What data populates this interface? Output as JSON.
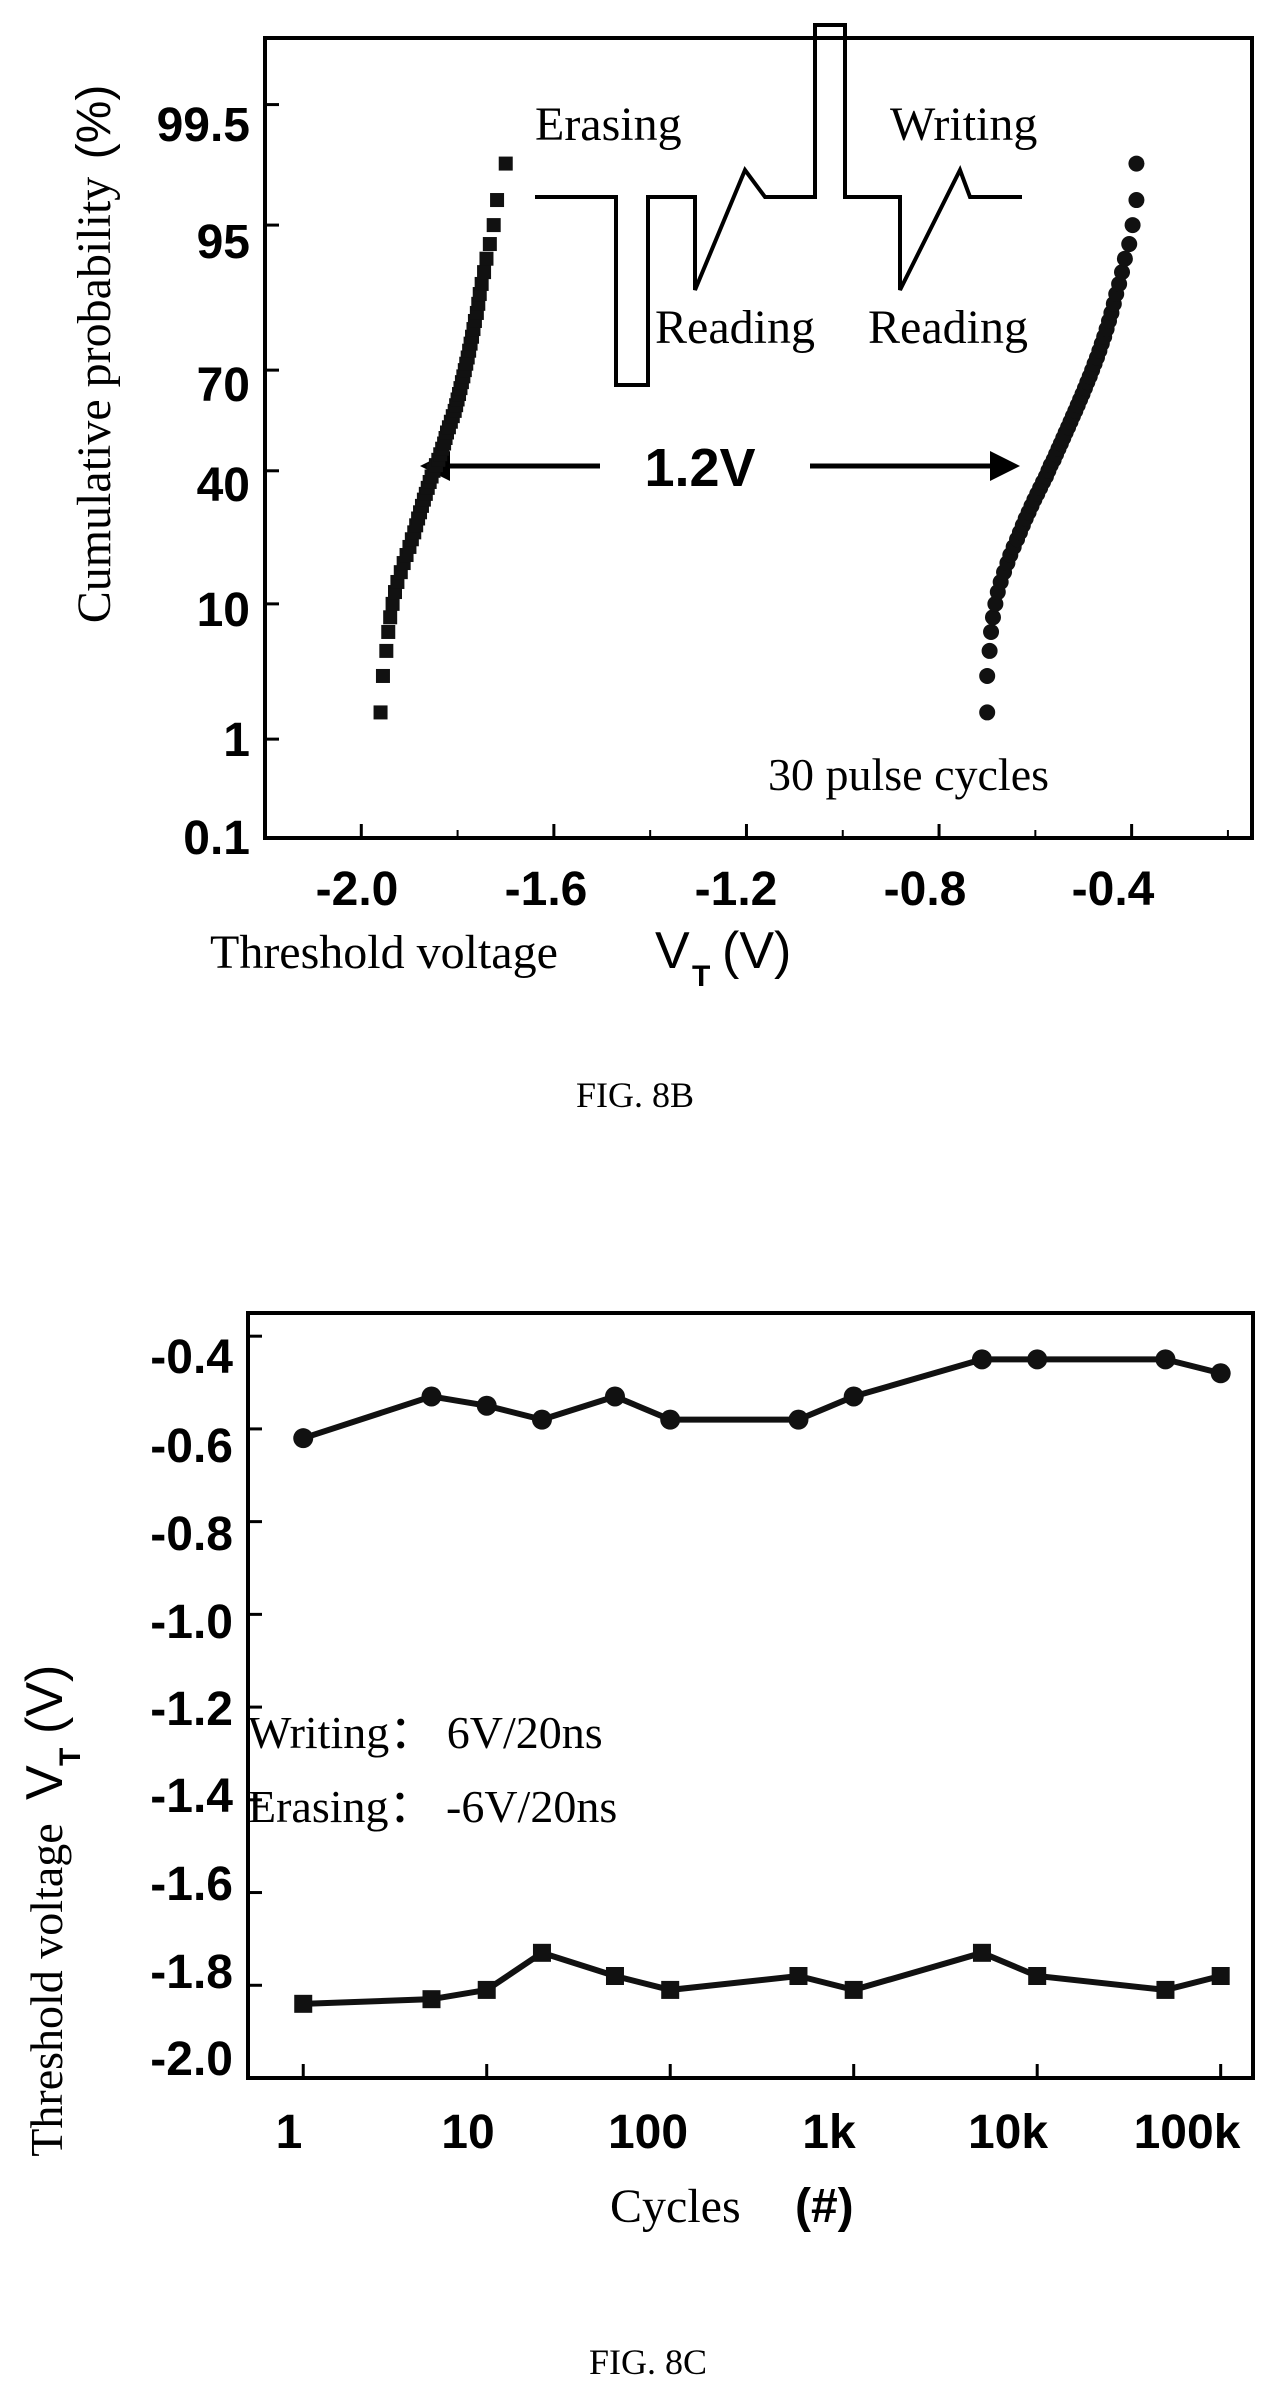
{
  "charts": [
    {
      "caption": "FIG. 8B",
      "title": "",
      "xlabel": "Threshold voltage",
      "xlabel_symbol": "V",
      "xlabel_subscript": "T",
      "xlabel_unit": "(V)",
      "ylabel": "Cumulative probability",
      "ylabel_unit": "(%)",
      "annotations": {
        "erasing": "Erasing",
        "writing": "Writing",
        "reading_left": "Reading",
        "reading_right": "Reading",
        "window": "1.2V",
        "cycles": "30 pulse cycles"
      }
    },
    {
      "caption": "FIG. 8C",
      "title": "",
      "xlabel": "Cycles",
      "xlabel_unit": "(#)",
      "ylabel": "Threshold voltage",
      "ylabel_symbol": "V",
      "ylabel_subscript": "T",
      "ylabel_unit": "(V)",
      "annotations": {
        "writing": "Writing： 6V/20ns",
        "erasing": "Erasing： -6V/20ns"
      }
    }
  ],
  "chart_data": [
    {
      "type": "scatter",
      "y_scale": "probability",
      "x_ticks": [
        "-2.0",
        "-1.6",
        "-1.2",
        "-0.8",
        "-0.4"
      ],
      "y_ticks": [
        "0.1",
        "1",
        "10",
        "40",
        "70",
        "95",
        "99.5"
      ],
      "xlim": [
        -2.2,
        -0.15
      ],
      "ylim_percent": [
        0.1,
        99.9
      ],
      "series": [
        {
          "marker": "square",
          "points": [
            [
              -1.96,
              1.7
            ],
            [
              -1.955,
              3.3
            ],
            [
              -1.948,
              5.0
            ],
            [
              -1.944,
              6.7
            ],
            [
              -1.94,
              8.3
            ],
            [
              -1.935,
              10.0
            ],
            [
              -1.93,
              11.7
            ],
            [
              -1.925,
              13.3
            ],
            [
              -1.918,
              15.0
            ],
            [
              -1.912,
              16.7
            ],
            [
              -1.906,
              18.3
            ],
            [
              -1.9,
              20.0
            ],
            [
              -1.895,
              21.7
            ],
            [
              -1.89,
              23.3
            ],
            [
              -1.886,
              25.0
            ],
            [
              -1.882,
              26.7
            ],
            [
              -1.878,
              28.3
            ],
            [
              -1.874,
              30.0
            ],
            [
              -1.87,
              31.7
            ],
            [
              -1.866,
              33.3
            ],
            [
              -1.862,
              35.0
            ],
            [
              -1.858,
              36.7
            ],
            [
              -1.854,
              38.3
            ],
            [
              -1.85,
              40.0
            ],
            [
              -1.845,
              41.7
            ],
            [
              -1.84,
              43.3
            ],
            [
              -1.836,
              45.0
            ],
            [
              -1.832,
              46.7
            ],
            [
              -1.828,
              48.3
            ],
            [
              -1.825,
              50.0
            ],
            [
              -1.822,
              51.7
            ],
            [
              -1.818,
              53.3
            ],
            [
              -1.814,
              55.0
            ],
            [
              -1.81,
              56.7
            ],
            [
              -1.806,
              58.3
            ],
            [
              -1.803,
              60.0
            ],
            [
              -1.8,
              61.7
            ],
            [
              -1.797,
              63.3
            ],
            [
              -1.794,
              65.0
            ],
            [
              -1.791,
              66.7
            ],
            [
              -1.788,
              68.3
            ],
            [
              -1.785,
              70.0
            ],
            [
              -1.782,
              71.7
            ],
            [
              -1.779,
              73.3
            ],
            [
              -1.776,
              75.0
            ],
            [
              -1.773,
              76.7
            ],
            [
              -1.77,
              78.3
            ],
            [
              -1.767,
              80.0
            ],
            [
              -1.764,
              81.7
            ],
            [
              -1.76,
              83.3
            ],
            [
              -1.757,
              85.0
            ],
            [
              -1.754,
              86.7
            ],
            [
              -1.75,
              88.3
            ],
            [
              -1.745,
              90.0
            ],
            [
              -1.74,
              91.7
            ],
            [
              -1.733,
              93.3
            ],
            [
              -1.725,
              95.0
            ],
            [
              -1.718,
              96.7
            ],
            [
              -1.7,
              98.3
            ]
          ]
        },
        {
          "marker": "circle",
          "points": [
            [
              -0.7,
              1.7
            ],
            [
              -0.7,
              3.3
            ],
            [
              -0.695,
              5.0
            ],
            [
              -0.692,
              6.7
            ],
            [
              -0.688,
              8.3
            ],
            [
              -0.683,
              10.0
            ],
            [
              -0.678,
              11.7
            ],
            [
              -0.672,
              13.3
            ],
            [
              -0.665,
              15.0
            ],
            [
              -0.658,
              16.7
            ],
            [
              -0.652,
              18.3
            ],
            [
              -0.645,
              20.0
            ],
            [
              -0.638,
              21.7
            ],
            [
              -0.632,
              23.3
            ],
            [
              -0.626,
              25.0
            ],
            [
              -0.62,
              26.7
            ],
            [
              -0.614,
              28.3
            ],
            [
              -0.608,
              30.0
            ],
            [
              -0.602,
              31.7
            ],
            [
              -0.596,
              33.3
            ],
            [
              -0.59,
              35.0
            ],
            [
              -0.584,
              36.7
            ],
            [
              -0.578,
              38.3
            ],
            [
              -0.573,
              40.0
            ],
            [
              -0.568,
              41.7
            ],
            [
              -0.562,
              43.3
            ],
            [
              -0.557,
              45.0
            ],
            [
              -0.552,
              46.7
            ],
            [
              -0.547,
              48.3
            ],
            [
              -0.542,
              50.0
            ],
            [
              -0.537,
              51.7
            ],
            [
              -0.532,
              53.3
            ],
            [
              -0.527,
              55.0
            ],
            [
              -0.522,
              56.7
            ],
            [
              -0.517,
              58.3
            ],
            [
              -0.512,
              60.0
            ],
            [
              -0.507,
              61.7
            ],
            [
              -0.502,
              63.3
            ],
            [
              -0.497,
              65.0
            ],
            [
              -0.492,
              66.7
            ],
            [
              -0.487,
              68.3
            ],
            [
              -0.482,
              70.0
            ],
            [
              -0.477,
              71.7
            ],
            [
              -0.472,
              73.3
            ],
            [
              -0.467,
              75.0
            ],
            [
              -0.462,
              76.7
            ],
            [
              -0.457,
              78.3
            ],
            [
              -0.452,
              80.0
            ],
            [
              -0.447,
              81.7
            ],
            [
              -0.442,
              83.3
            ],
            [
              -0.437,
              85.0
            ],
            [
              -0.432,
              86.7
            ],
            [
              -0.426,
              88.3
            ],
            [
              -0.42,
              90.0
            ],
            [
              -0.414,
              91.7
            ],
            [
              -0.405,
              93.3
            ],
            [
              -0.398,
              95.0
            ],
            [
              -0.39,
              96.7
            ],
            [
              -0.39,
              98.3
            ]
          ]
        }
      ]
    },
    {
      "type": "line",
      "x_scale": "log",
      "x_ticks": [
        "1",
        "10",
        "100",
        "1k",
        "10k",
        "100k"
      ],
      "x": [
        1,
        5,
        10,
        20,
        50,
        100,
        500,
        1000,
        5000,
        10000,
        50000,
        100000
      ],
      "y_ticks": [
        "-0.4",
        "-0.6",
        "-0.8",
        "-1.0",
        "-1.2",
        "-1.4",
        "-1.6",
        "-1.8",
        "-2.0"
      ],
      "ylim": [
        -2.0,
        -0.35
      ],
      "xlim": [
        0.5,
        150000
      ],
      "series": [
        {
          "marker": "circle",
          "values": [
            -0.62,
            -0.53,
            -0.55,
            -0.58,
            -0.53,
            -0.58,
            -0.58,
            -0.53,
            -0.45,
            -0.45,
            -0.45,
            -0.48
          ]
        },
        {
          "marker": "square",
          "values": [
            -1.84,
            -1.83,
            -1.81,
            -1.73,
            -1.78,
            -1.81,
            -1.78,
            -1.81,
            -1.73,
            -1.78,
            -1.81,
            -1.78
          ]
        }
      ]
    }
  ]
}
